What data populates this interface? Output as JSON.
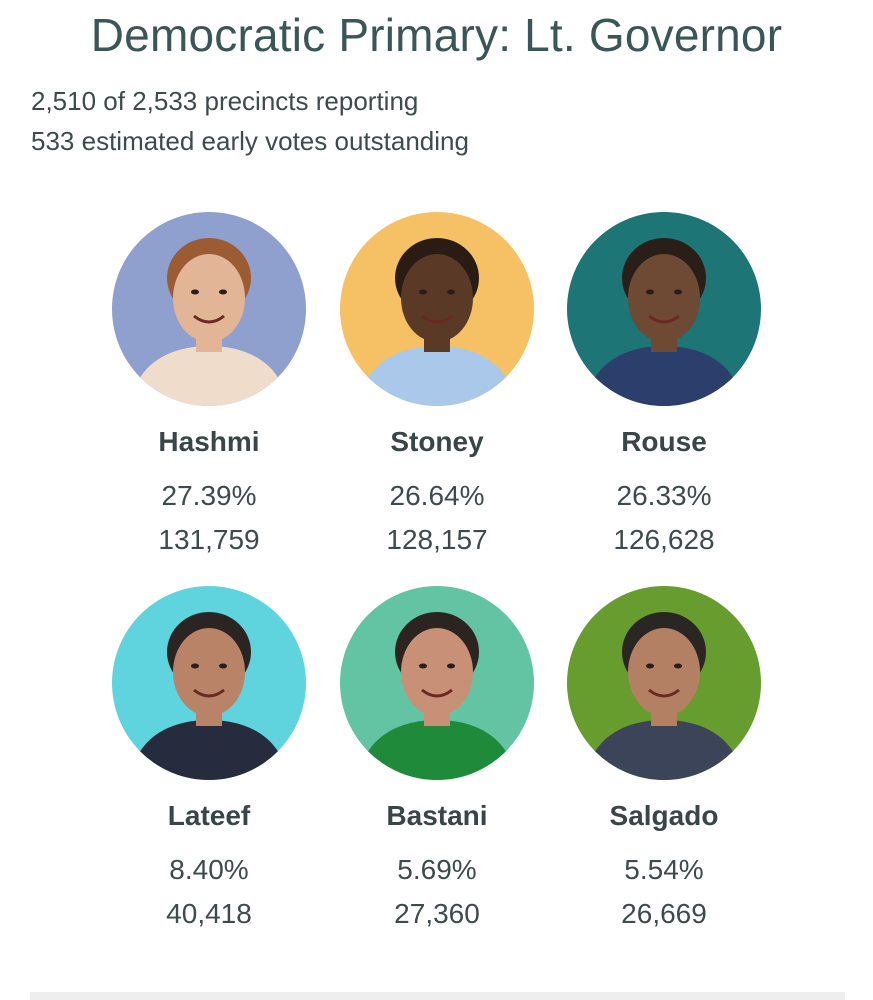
{
  "header": {
    "title": "Democratic Primary: Lt. Governor",
    "precincts": "2,510 of 2,533 precincts reporting",
    "early_votes": "533 estimated early votes outstanding"
  },
  "candidates": [
    {
      "name": "Hashmi",
      "percent": "27.39%",
      "votes": "131,759",
      "bg": "#8fa0cf",
      "skin": "#e3b597",
      "hair": "#9b5c34",
      "shirt": "#f0dccb"
    },
    {
      "name": "Stoney",
      "percent": "26.64%",
      "votes": "128,157",
      "bg": "#f6c065",
      "skin": "#5a3a26",
      "hair": "#2a1c14",
      "shirt": "#a9c8ea"
    },
    {
      "name": "Rouse",
      "percent": "26.33%",
      "votes": "126,628",
      "bg": "#1d7575",
      "skin": "#6e4a34",
      "hair": "#2a1e18",
      "shirt": "#2c3e6b"
    },
    {
      "name": "Lateef",
      "percent": "8.40%",
      "votes": "40,418",
      "bg": "#5fd4df",
      "skin": "#b88366",
      "hair": "#2a2422",
      "shirt": "#262c3e"
    },
    {
      "name": "Bastani",
      "percent": "5.69%",
      "votes": "27,360",
      "bg": "#63c4a4",
      "skin": "#c79077",
      "hair": "#2b2420",
      "shirt": "#1f8a3a"
    },
    {
      "name": "Salgado",
      "percent": "5.54%",
      "votes": "26,669",
      "bg": "#679c2f",
      "skin": "#b38064",
      "hair": "#2a2624",
      "shirt": "#3b4458"
    }
  ]
}
